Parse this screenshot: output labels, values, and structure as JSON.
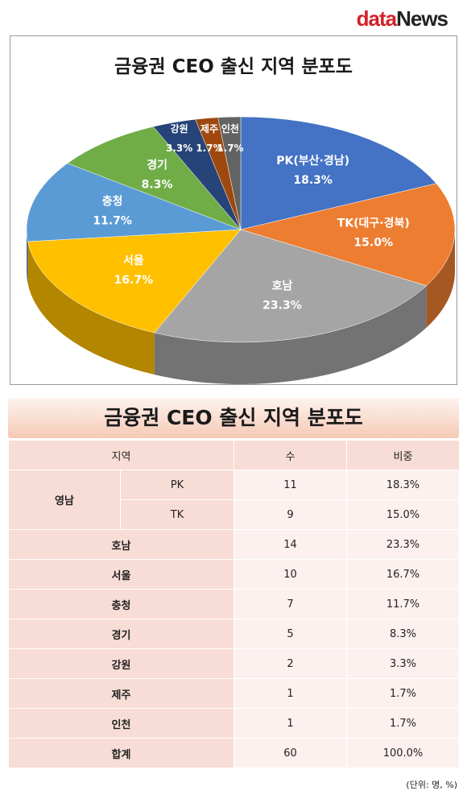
{
  "logo": {
    "part1": "data",
    "part2": "News"
  },
  "chart_data": {
    "type": "pie",
    "title": "금융권 CEO 출신 지역 분포도",
    "slices": [
      {
        "label": "PK(부산·경남)",
        "pct": "18.3%",
        "value": 18.3,
        "color": "#4472c4"
      },
      {
        "label": "TK(대구·경북)",
        "pct": "15.0%",
        "value": 15.0,
        "color": "#ed7d31"
      },
      {
        "label": "호남",
        "pct": "23.3%",
        "value": 23.3,
        "color": "#a5a5a5"
      },
      {
        "label": "서울",
        "pct": "16.7%",
        "value": 16.7,
        "color": "#ffc000"
      },
      {
        "label": "충청",
        "pct": "11.7%",
        "value": 11.7,
        "color": "#5b9bd5"
      },
      {
        "label": "경기",
        "pct": "8.3%",
        "value": 8.3,
        "color": "#70ad47"
      },
      {
        "label": "강원",
        "pct": "3.3%",
        "value": 3.3,
        "color": "#264478"
      },
      {
        "label": "제주",
        "pct": "1.7%",
        "value": 1.7,
        "color": "#9e480e"
      },
      {
        "label": "인천",
        "pct": "1.7%",
        "value": 1.7,
        "color": "#636363"
      }
    ]
  },
  "table": {
    "title": "금융권 CEO 출신 지역 분포도",
    "headers": [
      "지역",
      "수",
      "비중"
    ],
    "yeongnam": "영남",
    "pk": {
      "sub": "PK",
      "count": "11",
      "share": "18.3%"
    },
    "tk": {
      "sub": "TK",
      "count": "9",
      "share": "15.0%"
    },
    "rows": [
      {
        "region": "호남",
        "count": "14",
        "share": "23.3%"
      },
      {
        "region": "서울",
        "count": "10",
        "share": "16.7%"
      },
      {
        "region": "충청",
        "count": "7",
        "share": "11.7%"
      },
      {
        "region": "경기",
        "count": "5",
        "share": "8.3%"
      },
      {
        "region": "강원",
        "count": "2",
        "share": "3.3%"
      },
      {
        "region": "제주",
        "count": "1",
        "share": "1.7%"
      },
      {
        "region": "인천",
        "count": "1",
        "share": "1.7%"
      },
      {
        "region": "합계",
        "count": "60",
        "share": "100.0%"
      }
    ],
    "unit": "(단위: 명, %)"
  }
}
